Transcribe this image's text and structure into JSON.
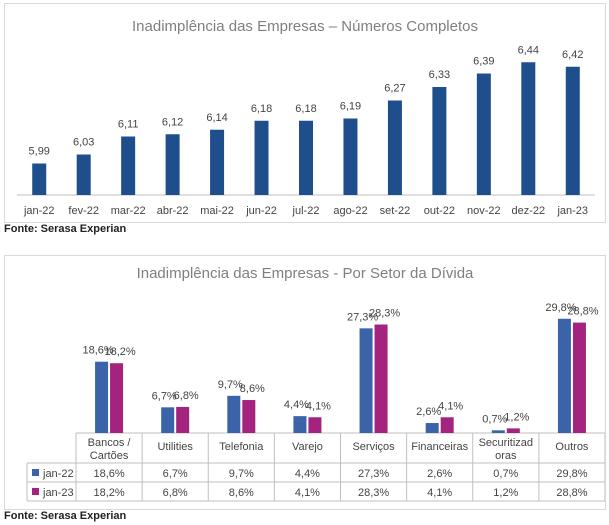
{
  "chart_data": [
    {
      "type": "bar",
      "title": "Inadimplência das Empresas – Números Completos",
      "categories": [
        "jan-22",
        "fev-22",
        "mar-22",
        "abr-22",
        "mai-22",
        "jun-22",
        "jul-22",
        "ago-22",
        "set-22",
        "out-22",
        "nov-22",
        "dez-22",
        "jan-23"
      ],
      "values": [
        5.99,
        6.03,
        6.11,
        6.12,
        6.14,
        6.18,
        6.18,
        6.19,
        6.27,
        6.33,
        6.39,
        6.44,
        6.42
      ],
      "value_labels": [
        "5,99",
        "6,03",
        "6,11",
        "6,12",
        "6,14",
        "6,18",
        "6,18",
        "6,19",
        "6,27",
        "6,33",
        "6,39",
        "6,44",
        "6,42"
      ],
      "ylim": [
        5.85,
        6.45
      ],
      "grid": false,
      "colors": {
        "bar": "#1f4e8c"
      }
    },
    {
      "type": "bar",
      "title": "Inadimplência das Empresas - Por Setor da Dívida",
      "categories": [
        "Bancos / Cartões",
        "Utilities",
        "Telefonia",
        "Varejo",
        "Serviços",
        "Financeiras",
        "Securitizadoras",
        "Outros"
      ],
      "category_lines": [
        [
          "Bancos /",
          "Cartões"
        ],
        [
          "Utilities"
        ],
        [
          "Telefonia"
        ],
        [
          "Varejo"
        ],
        [
          "Serviços"
        ],
        [
          "Financeiras"
        ],
        [
          "Securitizad",
          "oras"
        ],
        [
          "Outros"
        ]
      ],
      "series": [
        {
          "name": "jan-22",
          "values": [
            18.6,
            6.7,
            9.7,
            4.4,
            27.3,
            2.6,
            0.7,
            29.8
          ],
          "labels": [
            "18,6%",
            "6,7%",
            "9,7%",
            "4,4%",
            "27,3%",
            "2,6%",
            "0,7%",
            "29,8%"
          ],
          "color": "#3b64a8"
        },
        {
          "name": "jan-23",
          "values": [
            18.2,
            6.8,
            8.6,
            4.1,
            28.3,
            4.1,
            1.2,
            28.8
          ],
          "labels": [
            "18,2%",
            "6,8%",
            "8,6%",
            "4,1%",
            "28,3%",
            "4,1%",
            "1,2%",
            "28,8%"
          ],
          "color": "#a3237f"
        }
      ],
      "ylim": [
        0,
        30
      ],
      "grid": false,
      "data_table": true
    }
  ],
  "sources": [
    "Fonte: Serasa Experian",
    "Fonte: Serasa Experian"
  ]
}
